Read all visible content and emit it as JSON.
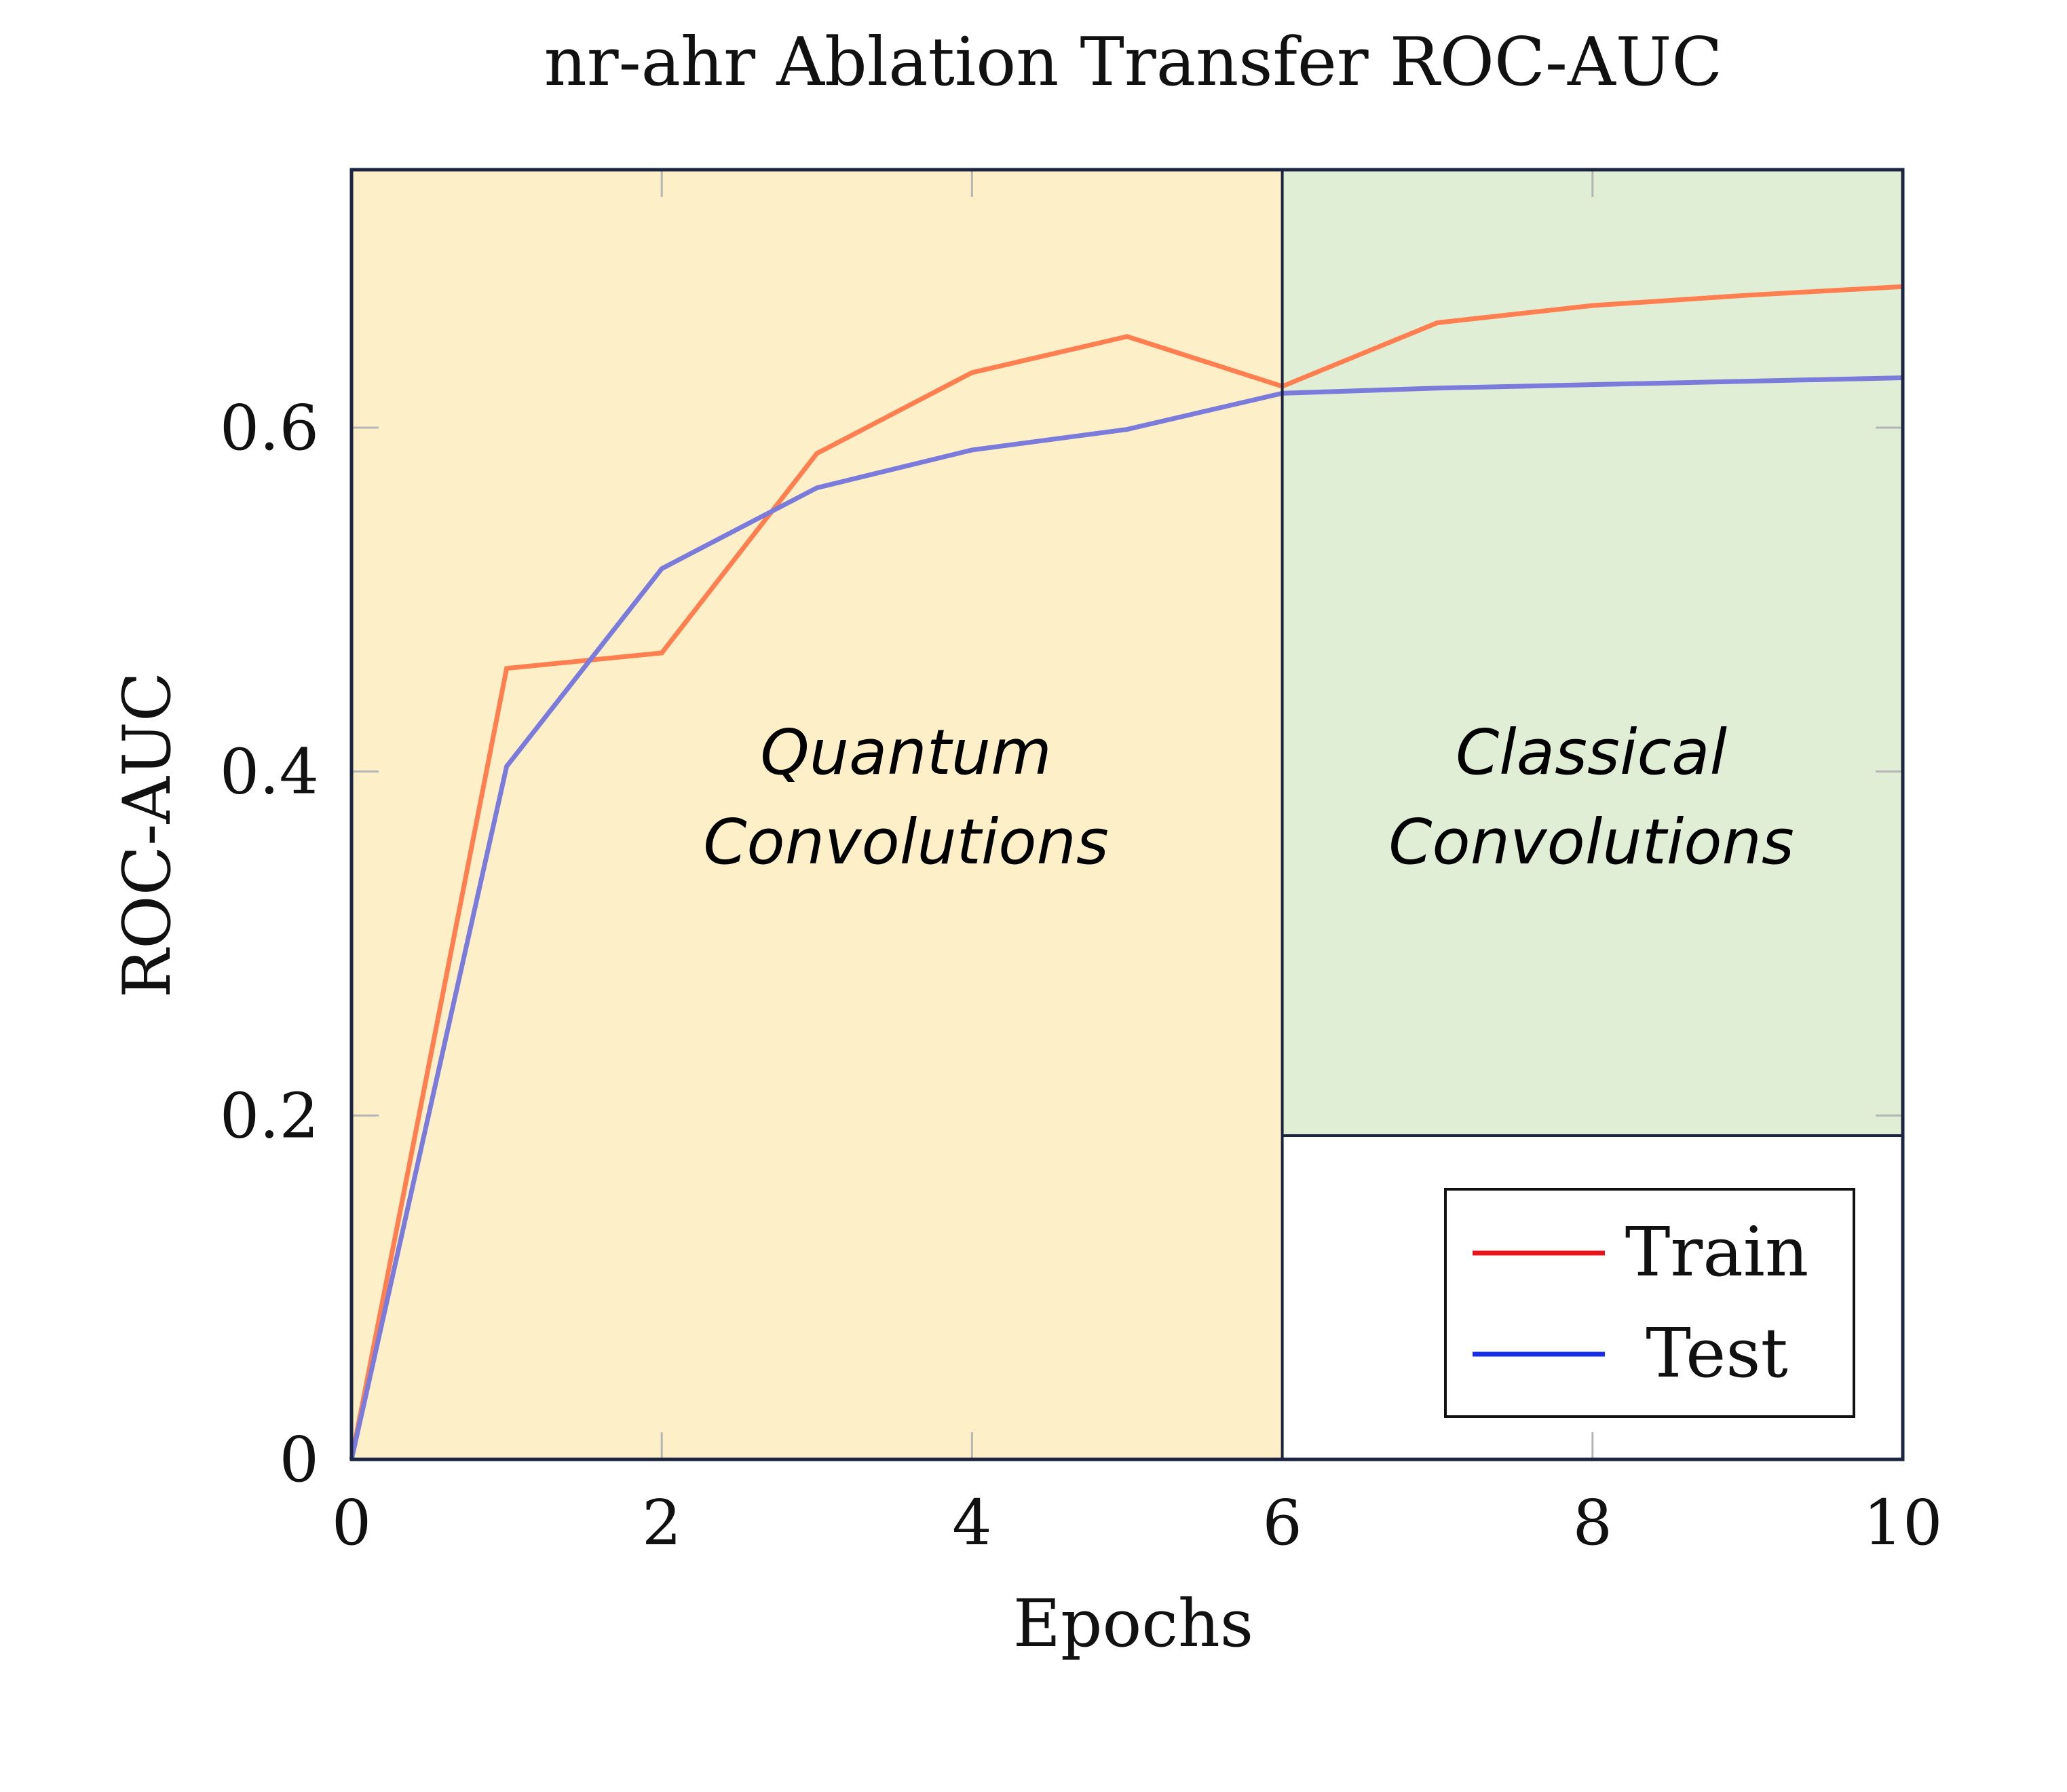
{
  "chart_data": {
    "type": "line",
    "title": "nr-ahr Ablation Transfer ROC-AUC",
    "xlabel": "Epochs",
    "ylabel": "ROC-AUC",
    "xlim": [
      0,
      10
    ],
    "ylim": [
      0,
      0.75
    ],
    "xticks": [
      0,
      2,
      4,
      6,
      8,
      10
    ],
    "xtick_labels": [
      "0",
      "2",
      "4",
      "6",
      "8",
      "10"
    ],
    "yticks": [
      0,
      0.2,
      0.4,
      0.6
    ],
    "ytick_labels": [
      "0",
      "0.2",
      "0.4",
      "0.6"
    ],
    "grid": false,
    "legend_position": "bottom-right",
    "series": [
      {
        "name": "Train",
        "legend_color": "#e8141c",
        "line_color": "#ff7f50",
        "x": [
          0,
          1,
          2,
          3,
          4,
          5,
          6,
          7,
          8,
          9,
          10
        ],
        "y": [
          0.0,
          0.46,
          0.469,
          0.585,
          0.632,
          0.653,
          0.624,
          0.661,
          0.671,
          0.677,
          0.682
        ]
      },
      {
        "name": "Test",
        "legend_color": "#1a2ee8",
        "line_color": "#7b7bdc",
        "x": [
          0,
          1,
          2,
          3,
          4,
          5,
          6,
          7,
          8,
          9,
          10
        ],
        "y": [
          0.0,
          0.403,
          0.518,
          0.565,
          0.587,
          0.599,
          0.62,
          0.623,
          0.625,
          0.627,
          0.629
        ]
      }
    ],
    "regions": [
      {
        "label_lines": [
          "Quantum",
          "Convolutions"
        ],
        "x_range": [
          0,
          6
        ],
        "color": "#fdf0c8"
      },
      {
        "label_lines": [
          "Classical",
          "Convolutions"
        ],
        "x_range": [
          6,
          10
        ],
        "color": "#dfeed5"
      }
    ]
  }
}
